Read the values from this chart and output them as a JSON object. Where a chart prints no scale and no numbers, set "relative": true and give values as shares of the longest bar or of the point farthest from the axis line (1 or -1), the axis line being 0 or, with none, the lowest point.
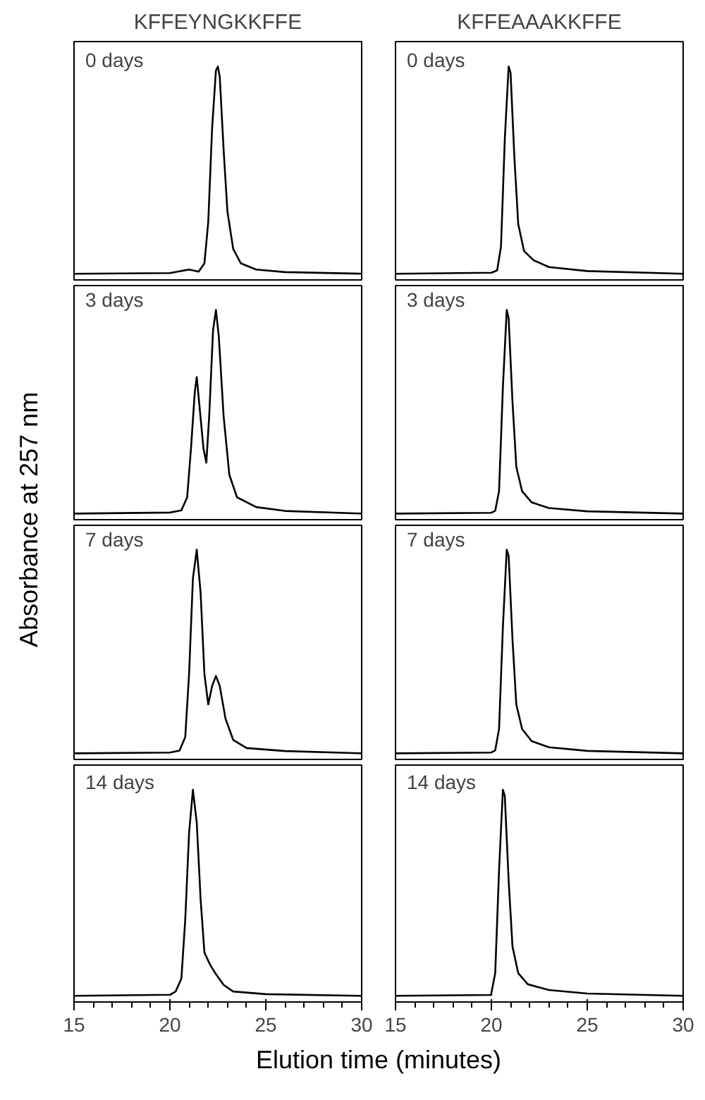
{
  "chart_data": [
    {
      "type": "line",
      "title": "KFFEYNGKKFFE",
      "ylabel": "Absorbance at 257 nm",
      "relative": true,
      "color": "#000000",
      "annotations": [
        "0 days"
      ],
      "xlim": [
        15,
        30
      ],
      "tick_labels": false,
      "x": [
        15,
        20,
        21.0,
        21.5,
        21.8,
        22.0,
        22.2,
        22.4,
        22.5,
        22.6,
        22.8,
        23.0,
        23.3,
        23.7,
        24.5,
        26,
        30
      ],
      "values": [
        0,
        0.003,
        0.02,
        0.01,
        0.05,
        0.25,
        0.7,
        0.98,
        1.0,
        0.95,
        0.6,
        0.3,
        0.12,
        0.05,
        0.02,
        0.008,
        0
      ]
    },
    {
      "type": "line",
      "title": "KFFEAAAKKFFE",
      "relative": true,
      "color": "#000000",
      "annotations": [
        "0 days"
      ],
      "xlim": [
        15,
        30
      ],
      "tick_labels": false,
      "x": [
        15,
        20,
        20.3,
        20.5,
        20.7,
        20.9,
        21.0,
        21.2,
        21.4,
        21.7,
        22.2,
        23,
        25,
        30
      ],
      "values": [
        0,
        0.005,
        0.016,
        0.13,
        0.65,
        1,
        0.97,
        0.56,
        0.24,
        0.11,
        0.065,
        0.032,
        0.013,
        0
      ]
    },
    {
      "type": "line",
      "relative": true,
      "color": "#000000",
      "annotations": [
        "3 days"
      ],
      "xlim": [
        15,
        30
      ],
      "tick_labels": false,
      "x": [
        15,
        20,
        20.6,
        20.9,
        21.1,
        21.3,
        21.4,
        21.55,
        21.75,
        21.9,
        22.05,
        22.25,
        22.4,
        22.55,
        22.8,
        23.1,
        23.5,
        24.5,
        26,
        30
      ],
      "values": [
        0,
        0.005,
        0.016,
        0.08,
        0.32,
        0.6,
        0.67,
        0.52,
        0.32,
        0.25,
        0.48,
        0.9,
        1,
        0.87,
        0.48,
        0.19,
        0.08,
        0.032,
        0.013,
        0
      ]
    },
    {
      "type": "line",
      "relative": true,
      "color": "#000000",
      "annotations": [
        "3 days"
      ],
      "xlim": [
        15,
        30
      ],
      "tick_labels": false,
      "x": [
        15,
        20,
        20.2,
        20.4,
        20.6,
        20.8,
        20.9,
        21.1,
        21.3,
        21.6,
        22.1,
        23,
        25,
        30
      ],
      "values": [
        0,
        0.004,
        0.014,
        0.11,
        0.62,
        1,
        0.96,
        0.55,
        0.23,
        0.11,
        0.055,
        0.027,
        0.011,
        0
      ]
    },
    {
      "type": "line",
      "relative": true,
      "color": "#000000",
      "annotations": [
        "7 days"
      ],
      "xlim": [
        15,
        30
      ],
      "tick_labels": false,
      "x": [
        15,
        20,
        20.5,
        20.8,
        21.0,
        21.2,
        21.4,
        21.6,
        21.8,
        22.0,
        22.2,
        22.4,
        22.6,
        22.9,
        23.3,
        24,
        26,
        30
      ],
      "values": [
        0,
        0.004,
        0.013,
        0.08,
        0.39,
        0.86,
        1,
        0.79,
        0.39,
        0.24,
        0.33,
        0.38,
        0.33,
        0.17,
        0.066,
        0.026,
        0.011,
        0
      ]
    },
    {
      "type": "line",
      "relative": true,
      "color": "#000000",
      "annotations": [
        "7 days"
      ],
      "xlim": [
        15,
        30
      ],
      "tick_labels": false,
      "x": [
        15,
        20,
        20.2,
        20.4,
        20.6,
        20.8,
        20.9,
        21.1,
        21.3,
        21.6,
        22.1,
        23,
        25,
        30
      ],
      "values": [
        0,
        0.004,
        0.015,
        0.12,
        0.62,
        1,
        0.97,
        0.56,
        0.24,
        0.12,
        0.06,
        0.03,
        0.012,
        0
      ]
    },
    {
      "type": "line",
      "xlabel": "Elution time (minutes)",
      "relative": true,
      "color": "#000000",
      "annotations": [
        "14 days"
      ],
      "xlim": [
        15,
        30
      ],
      "tick_labels": "x",
      "xticks": [
        15,
        {
          "value": 16,
          "label": null
        },
        {
          "value": 17,
          "label": null
        },
        {
          "value": 18,
          "label": null
        },
        {
          "value": 19,
          "label": null
        },
        20,
        {
          "value": 21,
          "label": null
        },
        {
          "value": 22,
          "label": null
        },
        {
          "value": 23,
          "label": null
        },
        {
          "value": 24,
          "label": null
        },
        25,
        {
          "value": 26,
          "label": null
        },
        {
          "value": 27,
          "label": null
        },
        {
          "value": 28,
          "label": null
        },
        {
          "value": 29,
          "label": null
        },
        30
      ],
      "x": [
        15,
        20,
        20.3,
        20.6,
        20.8,
        21.0,
        21.2,
        21.4,
        21.6,
        21.8,
        22.1,
        22.4,
        22.8,
        23.3,
        25,
        30
      ],
      "values": [
        0,
        0.005,
        0.021,
        0.084,
        0.37,
        0.79,
        1,
        0.84,
        0.47,
        0.21,
        0.15,
        0.105,
        0.053,
        0.021,
        0.008,
        0
      ]
    },
    {
      "type": "line",
      "relative": true,
      "color": "#000000",
      "annotations": [
        "14 days"
      ],
      "xlim": [
        15,
        30
      ],
      "tick_labels": "x",
      "xticks": [
        15,
        {
          "value": 16,
          "label": null
        },
        {
          "value": 17,
          "label": null
        },
        {
          "value": 18,
          "label": null
        },
        {
          "value": 19,
          "label": null
        },
        20,
        {
          "value": 21,
          "label": null
        },
        {
          "value": 22,
          "label": null
        },
        {
          "value": 23,
          "label": null
        },
        {
          "value": 24,
          "label": null
        },
        25,
        {
          "value": 26,
          "label": null
        },
        {
          "value": 27,
          "label": null
        },
        {
          "value": 28,
          "label": null
        },
        {
          "value": 29,
          "label": null
        },
        30
      ],
      "x": [
        15,
        20,
        20.0,
        20.2,
        20.4,
        20.6,
        20.7,
        20.9,
        21.1,
        21.4,
        21.9,
        23,
        25,
        30
      ],
      "values": [
        0,
        0.004,
        0.014,
        0.11,
        0.61,
        1,
        0.97,
        0.56,
        0.24,
        0.11,
        0.056,
        0.028,
        0.011,
        0
      ]
    }
  ]
}
